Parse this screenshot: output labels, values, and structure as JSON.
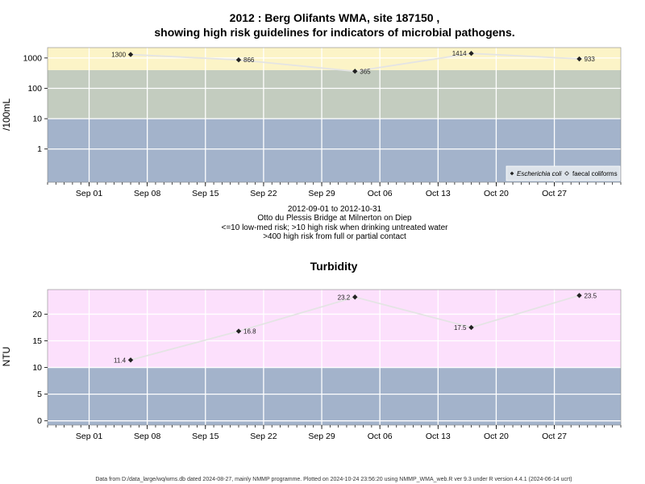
{
  "chart_data": [
    {
      "type": "line",
      "title_line1": "2012 : Berg Olifants WMA, site 187150 ,",
      "title_line2": "showing high risk guidelines for indicators of microbial pathogens.",
      "ylabel": "/100mL",
      "y_scale": "log",
      "yticks": [
        "1",
        "10",
        "100",
        "1000"
      ],
      "ytick_values": [
        1,
        10,
        100,
        1000
      ],
      "ylim": [
        0.08,
        2200
      ],
      "x_range": [
        "2012-08-27",
        "2012-11-04"
      ],
      "xticks": [
        "Sep 01",
        "Sep 08",
        "Sep 15",
        "Sep 22",
        "Sep 29",
        "Oct 06",
        "Oct 13",
        "Oct 20",
        "Oct 27"
      ],
      "xtick_dates": [
        "2012-09-01",
        "2012-09-08",
        "2012-09-15",
        "2012-09-22",
        "2012-09-29",
        "2012-10-06",
        "2012-10-13",
        "2012-10-20",
        "2012-10-27"
      ],
      "bands": [
        {
          "from": 0.08,
          "to": 10,
          "color": "#a3b3cb"
        },
        {
          "from": 10,
          "to": 400,
          "color": "#c3ccbf"
        },
        {
          "from": 400,
          "to": 2200,
          "color": "#fcf4c7"
        }
      ],
      "series": [
        {
          "name": "Escherichia coli",
          "x": [
            "2012-09-06",
            "2012-09-19",
            "2012-10-03",
            "2012-10-17",
            "2012-10-30"
          ],
          "values": [
            1300,
            866,
            365,
            1414,
            933
          ],
          "labels": [
            "1300",
            "866",
            "365",
            "1414",
            "933"
          ]
        },
        {
          "name": "faecal coliforms",
          "x": [],
          "values": [],
          "labels": []
        }
      ],
      "legend_position": "bottom-right",
      "subtitle_lines": [
        "2012-09-01 to 2012-10-31",
        "Otto du Plessis Bridge at Milnerton on Diep",
        "<=10 low-med risk; >10 high risk when drinking untreated water",
        ">400 high risk from full or partial contact"
      ]
    },
    {
      "type": "line",
      "title": "Turbidity",
      "ylabel": "NTU",
      "y_scale": "linear",
      "yticks": [
        "0",
        "5",
        "10",
        "15",
        "20"
      ],
      "ytick_values": [
        0,
        5,
        10,
        15,
        20
      ],
      "ylim": [
        -0.8,
        24.6
      ],
      "x_range": [
        "2012-08-27",
        "2012-11-04"
      ],
      "xticks": [
        "Sep 01",
        "Sep 08",
        "Sep 15",
        "Sep 22",
        "Sep 29",
        "Oct 06",
        "Oct 13",
        "Oct 20",
        "Oct 27"
      ],
      "xtick_dates": [
        "2012-09-01",
        "2012-09-08",
        "2012-09-15",
        "2012-09-22",
        "2012-09-29",
        "2012-10-06",
        "2012-10-13",
        "2012-10-20",
        "2012-10-27"
      ],
      "bands": [
        {
          "from": -0.8,
          "to": 10,
          "color": "#a3b3cb"
        },
        {
          "from": 10,
          "to": 24.6,
          "color": "#fce0fc"
        }
      ],
      "series": [
        {
          "name": "Turbidity",
          "x": [
            "2012-09-06",
            "2012-09-19",
            "2012-10-03",
            "2012-10-17",
            "2012-10-30"
          ],
          "values": [
            11.4,
            16.8,
            23.2,
            17.5,
            23.5
          ],
          "labels": [
            "11.4",
            "16.8",
            "23.2",
            "17.5",
            "23.5"
          ]
        }
      ]
    }
  ],
  "footer": "Data from D:/data_large/wq/wms.db dated 2024-08-27, mainly NMMP programme. Plotted on 2024-10-24 23:56:20 using NMMP_WMA_web.R ver 9.3 under R version 4.4.1 (2024-06-14 ucrt)",
  "colors": {
    "grid": "#ffffff",
    "line": "#e4e4e4",
    "point": "#222222",
    "frame": "#888888"
  }
}
